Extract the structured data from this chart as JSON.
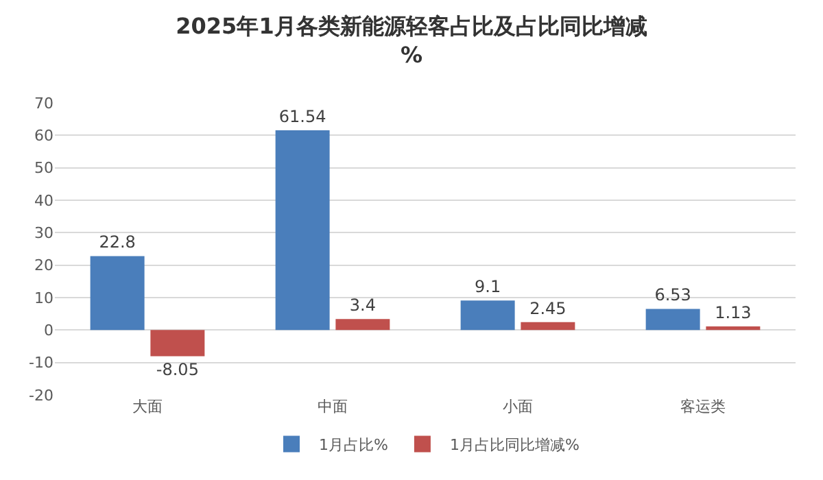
{
  "chart_data": {
    "type": "bar",
    "title": "2025年1月各类新能源轻客占比及占比同比增减\n%",
    "categories": [
      "大面",
      "中面",
      "小面",
      "客运类"
    ],
    "series": [
      {
        "name": "1月占比%",
        "color": "#4a7ebb",
        "values": [
          22.8,
          61.54,
          9.1,
          6.53
        ]
      },
      {
        "name": "1月占比同比增减%",
        "color": "#c0504d",
        "values": [
          -8.05,
          3.4,
          2.45,
          1.13
        ]
      }
    ],
    "ylim": [
      -20,
      70
    ],
    "yticks": [
      -20,
      -10,
      0,
      10,
      20,
      30,
      40,
      50,
      60,
      70
    ],
    "grid": "y",
    "legend": "bottom",
    "data_labels": true
  }
}
